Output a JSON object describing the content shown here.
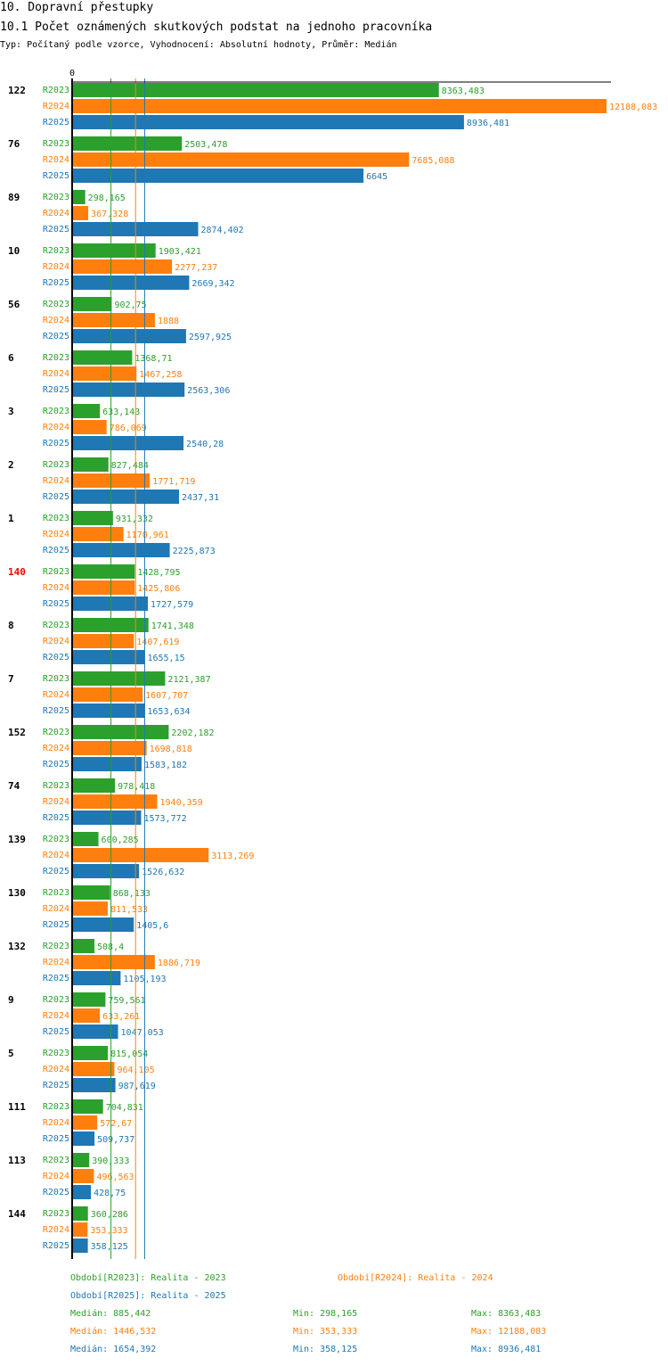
{
  "header": {
    "title": "10. Dopravní přestupky",
    "subtitle": "10.1 Počet oznámených skutkových podstat na jednoho pracovníka",
    "type_line": "Typ: Počítaný podle vzorce, Vyhodnocení: Absolutní hodnoty, Průměr: Medián"
  },
  "chart_data": {
    "type": "bar",
    "orientation": "horizontal",
    "xlim": [
      0,
      12188.083
    ],
    "axis_zero_label": "0",
    "highlight_color": "#ff0000",
    "categories": [
      "122",
      "76",
      "89",
      "10",
      "56",
      "6",
      "3",
      "2",
      "1",
      "140",
      "8",
      "7",
      "152",
      "74",
      "139",
      "130",
      "132",
      "9",
      "5",
      "111",
      "113",
      "144"
    ],
    "highlighted_category": "140",
    "series": [
      {
        "name": "R2023",
        "color": "#2ca02c",
        "values": [
          8363.483,
          2503.478,
          298.165,
          1903.421,
          902.75,
          1368.71,
          633.143,
          827.484,
          931.332,
          1428.795,
          1741.348,
          2121.387,
          2202.182,
          978.418,
          600.285,
          868.133,
          508.4,
          759.561,
          815.054,
          704.831,
          390.333,
          360.286
        ],
        "labels": [
          "8363,483",
          "2503,478",
          "298,165",
          "1903,421",
          "902,75",
          "1368,71",
          "633,143",
          "827,484",
          "931,332",
          "1428,795",
          "1741,348",
          "2121,387",
          "2202,182",
          "978,418",
          "600,285",
          "868,133",
          "508,4",
          "759,561",
          "815,054",
          "704,831",
          "390,333",
          "360,286"
        ]
      },
      {
        "name": "R2024",
        "color": "#ff7f0e",
        "values": [
          12188.083,
          7685.088,
          367.328,
          2277.237,
          1888,
          1467.258,
          786.069,
          1771.719,
          1170.961,
          1425.806,
          1407.619,
          1607.707,
          1698.818,
          1940.359,
          3113.269,
          811.533,
          1886.719,
          633.261,
          964.105,
          572.67,
          496.563,
          353.333
        ],
        "labels": [
          "12188,083",
          "7685,088",
          "367,328",
          "2277,237",
          "1888",
          "1467,258",
          "786,069",
          "1771,719",
          "1170,961",
          "1425,806",
          "1407,619",
          "1607,707",
          "1698,818",
          "1940,359",
          "3113,269",
          "811,533",
          "1886,719",
          "633,261",
          "964,105",
          "572,67",
          "496,563",
          "353,333"
        ]
      },
      {
        "name": "R2025",
        "color": "#1f77b4",
        "values": [
          8936.481,
          6645,
          2874.402,
          2669.342,
          2597.925,
          2563.306,
          2540.28,
          2437.31,
          2225.873,
          1727.579,
          1655.15,
          1653.634,
          1583.182,
          1573.772,
          1526.632,
          1405.6,
          1105.193,
          1047.053,
          987.619,
          509.737,
          428.75,
          358.125
        ],
        "labels": [
          "8936,481",
          "6645",
          "2874,402",
          "2669,342",
          "2597,925",
          "2563,306",
          "2540,28",
          "2437,31",
          "2225,873",
          "1727,579",
          "1655,15",
          "1653,634",
          "1583,182",
          "1573,772",
          "1526,632",
          "1405,6",
          "1105,193",
          "1047,053",
          "987,619",
          "509,737",
          "428,75",
          "358,125"
        ]
      }
    ],
    "median_lines": [
      {
        "series": "R2023",
        "value": 885.442
      },
      {
        "series": "R2024",
        "value": 1446.532
      },
      {
        "series": "R2025",
        "value": 1654.392
      }
    ]
  },
  "legend": {
    "period_2023": "Období[R2023]: Realita - 2023",
    "period_2024": "Období[R2024]: Realita - 2024",
    "period_2025": "Období[R2025]: Realita - 2025",
    "stats_2023": {
      "median": "Medián: 885,442",
      "min": "Min: 298,165",
      "max": "Max: 8363,483"
    },
    "stats_2024": {
      "median": "Medián: 1446,532",
      "min": "Min: 353,333",
      "max": "Max: 12188,083"
    },
    "stats_2025": {
      "median": "Medián: 1654,392",
      "min": "Min: 358,125",
      "max": "Max: 8936,481"
    }
  }
}
